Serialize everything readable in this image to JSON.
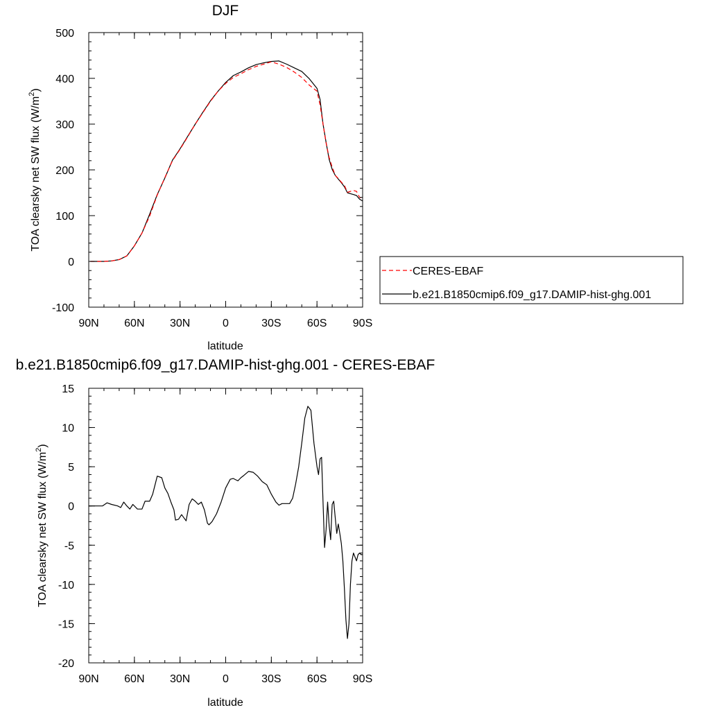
{
  "chart_data": [
    {
      "type": "line",
      "title": "DJF",
      "xlabel": "latitude",
      "ylabel": "TOA clearsky net SW flux (W/m",
      "ylabel_sup": "2",
      "ylabel_close": ")",
      "xlim": [
        90,
        -90
      ],
      "ylim": [
        -100,
        500
      ],
      "x_ticks": [
        90,
        60,
        30,
        0,
        -30,
        -60,
        -90
      ],
      "x_tick_labels": [
        "90N",
        "60N",
        "30N",
        "0",
        "30S",
        "60S",
        "90S"
      ],
      "y_ticks": [
        -100,
        0,
        100,
        200,
        300,
        400,
        500
      ],
      "y_tick_labels": [
        "-100",
        "0",
        "100",
        "200",
        "300",
        "400",
        "500"
      ],
      "grid": false,
      "legend": "right",
      "series": [
        {
          "name": "CERES-EBAF",
          "color": "#ff0000",
          "dash": "dashed",
          "x": [
            89,
            85,
            80,
            75,
            70,
            65,
            60,
            55,
            50,
            45,
            40,
            35,
            30,
            25,
            20,
            15,
            10,
            5,
            0,
            -5,
            -10,
            -15,
            -20,
            -25,
            -30,
            -35,
            -40,
            -45,
            -50,
            -55,
            -60,
            -62,
            -64,
            -66,
            -68,
            -70,
            -72,
            -74,
            -76,
            -78,
            -80,
            -82,
            -84,
            -86,
            -88,
            -90
          ],
          "y": [
            0,
            0,
            0,
            1,
            4,
            12,
            34,
            62,
            99,
            145,
            183,
            220,
            245,
            272,
            300,
            325,
            350,
            372,
            389,
            402,
            410,
            419,
            426,
            431,
            436,
            431,
            424,
            414,
            402,
            385,
            372,
            342,
            300,
            259,
            227,
            206,
            188,
            181,
            173,
            166,
            151,
            153,
            155,
            153,
            140,
            138
          ]
        },
        {
          "name": "b.e21.B1850cmip6.f09_g17.DAMIP-hist-ghg.001",
          "color": "#000000",
          "dash": "solid",
          "x": [
            89,
            85,
            80,
            75,
            70,
            65,
            60,
            55,
            50,
            45,
            40,
            35,
            30,
            25,
            20,
            15,
            10,
            5,
            0,
            -5,
            -10,
            -15,
            -20,
            -25,
            -30,
            -35,
            -40,
            -45,
            -50,
            -55,
            -60,
            -62,
            -64,
            -66,
            -68,
            -70,
            -72,
            -74,
            -76,
            -78,
            -80,
            -82,
            -84,
            -86,
            -88,
            -90
          ],
          "y": [
            0,
            0,
            0,
            1,
            4,
            12,
            34,
            62,
            103,
            146,
            182,
            221,
            246,
            273,
            300,
            326,
            351,
            372,
            391,
            406,
            414,
            423,
            430,
            434,
            437,
            438,
            431,
            423,
            415,
            399,
            378,
            354,
            300,
            260,
            223,
            201,
            188,
            180,
            172,
            163,
            150,
            148,
            146,
            144,
            136,
            132
          ]
        }
      ]
    },
    {
      "type": "line",
      "title": "b.e21.B1850cmip6.f09_g17.DAMIP-hist-ghg.001 - CERES-EBAF",
      "xlabel": "latitude",
      "ylabel": "TOA clearsky net SW flux (W/m",
      "ylabel_sup": "2",
      "ylabel_close": ")",
      "xlim": [
        90,
        -90
      ],
      "ylim": [
        -20,
        15
      ],
      "x_ticks": [
        90,
        60,
        30,
        0,
        -30,
        -60,
        -90
      ],
      "x_tick_labels": [
        "90N",
        "60N",
        "30N",
        "0",
        "30S",
        "60S",
        "90S"
      ],
      "y_ticks": [
        -20,
        -15,
        -10,
        -5,
        0,
        5,
        10,
        15
      ],
      "y_tick_labels": [
        "-20",
        "-15",
        "-10",
        "-5",
        "0",
        "5",
        "10",
        "15"
      ],
      "grid": false,
      "series": [
        {
          "color": "#000000",
          "dash": "solid",
          "x": [
            90,
            85,
            81,
            78,
            75,
            71,
            69,
            67,
            65,
            63,
            61,
            58,
            55,
            53,
            50,
            48,
            45,
            42,
            40,
            38,
            36,
            34,
            33,
            31,
            29,
            26,
            24,
            22,
            20,
            18,
            16,
            14,
            12,
            11,
            9,
            6,
            3,
            0,
            -3,
            -5,
            -8,
            -10,
            -12,
            -15,
            -18,
            -21,
            -24,
            -27,
            -30,
            -33,
            -35,
            -37,
            -39,
            -42,
            -44,
            -46,
            -48,
            -50,
            -52,
            -54,
            -56,
            -58,
            -60,
            -61,
            -62,
            -63,
            -64,
            -65,
            -66,
            -67,
            -68,
            -69,
            -70,
            -71,
            -72,
            -73,
            -74,
            -75,
            -76,
            -77,
            -78,
            -79,
            -80,
            -81,
            -82,
            -83,
            -84,
            -85,
            -86,
            -87,
            -88,
            -89,
            -90
          ],
          "y": [
            0,
            0,
            0,
            0.4,
            0.2,
            0,
            -0.2,
            0.5,
            0,
            -0.4,
            0.2,
            -0.4,
            -0.4,
            0.6,
            0.6,
            1.5,
            3.8,
            3.6,
            2.3,
            1.6,
            0.5,
            -0.5,
            -1.8,
            -1.7,
            -1.1,
            -1.9,
            0.2,
            0.9,
            0.6,
            0.2,
            0.5,
            -0.5,
            -2.2,
            -2.4,
            -2.0,
            -1.0,
            0.5,
            2.3,
            3.4,
            3.5,
            3.2,
            3.6,
            3.9,
            4.4,
            4.3,
            3.8,
            3.1,
            2.7,
            1.5,
            0.5,
            0.1,
            0.3,
            0.3,
            0.3,
            1.0,
            2.8,
            5.0,
            8.0,
            11.2,
            12.7,
            12.2,
            8.0,
            5.0,
            4.0,
            6.0,
            6.2,
            0.5,
            -5.3,
            -3.0,
            0.5,
            -2.5,
            -4.3,
            0.2,
            0.6,
            -1.5,
            -3.5,
            -2.3,
            -3.5,
            -4.8,
            -7.0,
            -10.5,
            -14.5,
            -16.9,
            -15.0,
            -10.0,
            -7.0,
            -6.0,
            -6.5,
            -7.0,
            -6.2,
            -6.0,
            -6.2,
            -6.2
          ]
        }
      ]
    }
  ]
}
